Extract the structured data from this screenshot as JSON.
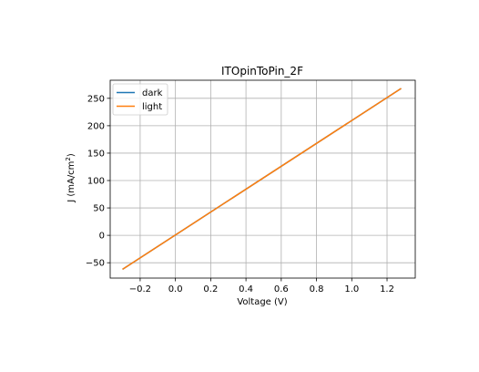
{
  "chart_data": {
    "type": "line",
    "title": "ITOpinToPin_2F",
    "xlabel": "Voltage (V)",
    "ylabel_main": "J (mA/cm",
    "ylabel_sup": "2",
    "ylabel_close": ")",
    "xlim": [
      -0.37,
      1.36
    ],
    "ylim": [
      -78,
      283
    ],
    "xticks": [
      -0.2,
      0.0,
      0.2,
      0.4,
      0.6,
      0.8,
      1.0,
      1.2
    ],
    "xtick_labels": [
      "−0.2",
      "0.0",
      "0.2",
      "0.4",
      "0.6",
      "0.8",
      "1.0",
      "1.2"
    ],
    "yticks": [
      -50,
      0,
      50,
      100,
      150,
      200,
      250
    ],
    "ytick_labels": [
      "−50",
      "0",
      "50",
      "100",
      "150",
      "200",
      "250"
    ],
    "grid": true,
    "legend_position": "upper-left",
    "series": [
      {
        "name": "dark",
        "color": "#1f77b4",
        "x": [
          -0.3,
          1.28
        ],
        "y": [
          -62,
          268
        ]
      },
      {
        "name": "light",
        "color": "#ff7f0e",
        "x": [
          -0.3,
          1.28
        ],
        "y": [
          -62,
          268
        ]
      }
    ]
  }
}
